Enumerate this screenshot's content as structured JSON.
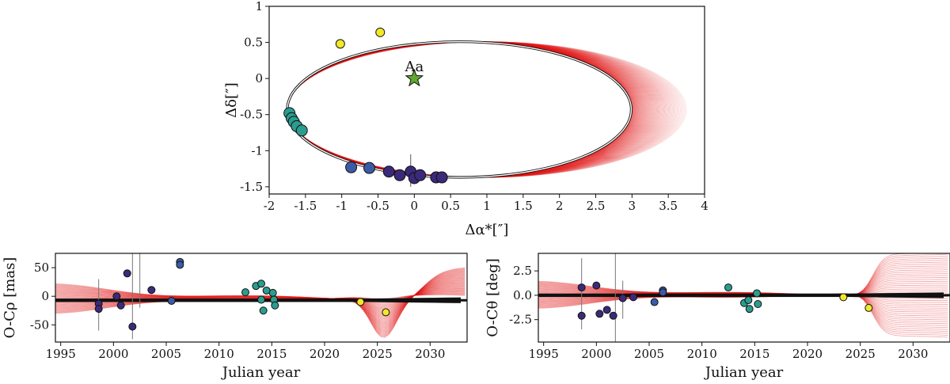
{
  "chart_data": [
    {
      "type": "scatter",
      "panel": "orbit",
      "xlabel": "Δα*[″]",
      "ylabel": "Δδ[″]",
      "xlim": [
        -2,
        4
      ],
      "ylim": [
        -1.6,
        1
      ],
      "xticks": [
        "-2",
        "-1.5",
        "-1",
        "-0.5",
        "0",
        "0.5",
        "1",
        "1.5",
        "2",
        "2.5",
        "3",
        "3.5",
        "4"
      ],
      "yticks": [
        "1",
        "0.5",
        "0",
        "-0.5",
        "-1",
        "-1.5"
      ],
      "xtick_values": [
        -2,
        -1.5,
        -1,
        -0.5,
        0,
        0.5,
        1,
        1.5,
        2,
        2.5,
        3,
        3.5,
        4
      ],
      "ytick_values": [
        1,
        0.5,
        0,
        -0.5,
        -1,
        -1.5
      ],
      "central_star": {
        "label": "Aa",
        "x": 0,
        "y": 0
      },
      "best_orbit": {
        "center": [
          0.62,
          -0.43
        ],
        "semi_x": 2.37,
        "semi_y": 0.94
      },
      "posterior_orbits": {
        "center_range": [
          0.62,
          1.0
        ],
        "semi_x_range": [
          2.37,
          2.75
        ],
        "semi_y": 0.94,
        "count": 70
      },
      "points": [
        {
          "x": -1.72,
          "y": -0.48,
          "c": "#2a9d8f"
        },
        {
          "x": -1.69,
          "y": -0.55,
          "c": "#2a9d8f"
        },
        {
          "x": -1.66,
          "y": -0.6,
          "c": "#2a9d8f"
        },
        {
          "x": -1.62,
          "y": -0.66,
          "c": "#2a9d8f"
        },
        {
          "x": -1.55,
          "y": -0.72,
          "c": "#2a9d8f"
        },
        {
          "x": -0.87,
          "y": -1.23,
          "c": "#3b5ba5"
        },
        {
          "x": -0.62,
          "y": -1.24,
          "c": "#3b5ba5"
        },
        {
          "x": -0.35,
          "y": -1.29,
          "c": "#3b2a7a"
        },
        {
          "x": -0.2,
          "y": -1.34,
          "c": "#3b2a7a"
        },
        {
          "x": -0.05,
          "y": -1.29,
          "c": "#3b2a7a"
        },
        {
          "x": 0.0,
          "y": -1.38,
          "c": "#3b2a7a"
        },
        {
          "x": 0.08,
          "y": -1.34,
          "c": "#3b2a7a"
        },
        {
          "x": 0.3,
          "y": -1.37,
          "c": "#3b2a7a"
        },
        {
          "x": 0.38,
          "y": -1.37,
          "c": "#3b2a7a"
        },
        {
          "x": -1.02,
          "y": 0.48,
          "c": "#f2e82a"
        },
        {
          "x": -0.47,
          "y": 0.64,
          "c": "#f2e82a"
        }
      ]
    },
    {
      "type": "scatter",
      "panel": "residual-rho",
      "xlabel": "Julian year",
      "ylabel": "O-Cρ [mas]",
      "xlim": [
        1994.5,
        2033.5
      ],
      "ylim": [
        -80,
        75
      ],
      "xticks": [
        "1995",
        "2000",
        "2005",
        "2010",
        "2015",
        "2020",
        "2025",
        "2030"
      ],
      "yticks": [
        "50",
        "0",
        "-50"
      ],
      "xtick_values": [
        1995,
        2000,
        2005,
        2010,
        2015,
        2020,
        2025,
        2030
      ],
      "ytick_values": [
        50,
        0,
        -50
      ],
      "points": [
        {
          "x": 1998.6,
          "y": -13,
          "c": "#3b2a7a"
        },
        {
          "x": 1998.6,
          "y": -22,
          "c": "#3b2a7a"
        },
        {
          "x": 2000.3,
          "y": 0,
          "c": "#3b2a7a"
        },
        {
          "x": 2000.7,
          "y": -16,
          "c": "#3b2a7a"
        },
        {
          "x": 2001.3,
          "y": 40,
          "c": "#3b2a7a"
        },
        {
          "x": 2001.8,
          "y": -53,
          "c": "#3b2a7a"
        },
        {
          "x": 2003.6,
          "y": 11,
          "c": "#3b2a7a"
        },
        {
          "x": 2005.5,
          "y": -8,
          "c": "#3b5ba5"
        },
        {
          "x": 2006.3,
          "y": 60,
          "c": "#3b5ba5"
        },
        {
          "x": 2006.3,
          "y": 55,
          "c": "#3b5ba5"
        },
        {
          "x": 2012.5,
          "y": 7,
          "c": "#2a9d8f"
        },
        {
          "x": 2013.5,
          "y": 18,
          "c": "#2a9d8f"
        },
        {
          "x": 2014.0,
          "y": 22,
          "c": "#2a9d8f"
        },
        {
          "x": 2014.0,
          "y": -6,
          "c": "#2a9d8f"
        },
        {
          "x": 2014.2,
          "y": -25,
          "c": "#2a9d8f"
        },
        {
          "x": 2014.5,
          "y": 10,
          "c": "#2a9d8f"
        },
        {
          "x": 2015.1,
          "y": 6,
          "c": "#2a9d8f"
        },
        {
          "x": 2015.2,
          "y": -6,
          "c": "#2a9d8f"
        },
        {
          "x": 2015.3,
          "y": -16,
          "c": "#2a9d8f"
        },
        {
          "x": 2023.4,
          "y": -10,
          "c": "#f2e82a"
        },
        {
          "x": 2025.8,
          "y": -28,
          "c": "#f2e82a"
        }
      ],
      "error_bars": [
        {
          "x": 1998.6,
          "y1": -60,
          "y2": 30
        },
        {
          "x": 2001.8,
          "y1": -75,
          "y2": 75
        },
        {
          "x": 2002.5,
          "y1": -20,
          "y2": 75
        },
        {
          "x": 2006.3,
          "y1": 50,
          "y2": 66
        }
      ]
    },
    {
      "type": "scatter",
      "panel": "residual-theta",
      "xlabel": "Julian year",
      "ylabel": "O-Cθ [deg]",
      "xlim": [
        1994.5,
        2033.5
      ],
      "ylim": [
        -4.8,
        4.3
      ],
      "xticks": [
        "1995",
        "2000",
        "2005",
        "2010",
        "2015",
        "2020",
        "2025",
        "2030"
      ],
      "yticks": [
        "2.5",
        "0.0",
        "-2.5"
      ],
      "xtick_values": [
        1995,
        2000,
        2005,
        2010,
        2015,
        2020,
        2025,
        2030
      ],
      "ytick_values": [
        2.5,
        0,
        -2.5
      ],
      "points": [
        {
          "x": 1998.6,
          "y": 0.8,
          "c": "#3b2a7a"
        },
        {
          "x": 1998.6,
          "y": -2.1,
          "c": "#3b2a7a"
        },
        {
          "x": 2000.0,
          "y": 1.0,
          "c": "#3b2a7a"
        },
        {
          "x": 2000.3,
          "y": -1.9,
          "c": "#3b2a7a"
        },
        {
          "x": 2001.0,
          "y": -1.5,
          "c": "#3b2a7a"
        },
        {
          "x": 2001.6,
          "y": -2.1,
          "c": "#3b2a7a"
        },
        {
          "x": 2002.5,
          "y": -0.3,
          "c": "#3b2a7a"
        },
        {
          "x": 2003.5,
          "y": -0.2,
          "c": "#3b2a7a"
        },
        {
          "x": 2005.5,
          "y": -0.7,
          "c": "#3b5ba5"
        },
        {
          "x": 2006.3,
          "y": 0.5,
          "c": "#3b5ba5"
        },
        {
          "x": 2006.3,
          "y": 0.3,
          "c": "#3b5ba5"
        },
        {
          "x": 2012.5,
          "y": 0.8,
          "c": "#2a9d8f"
        },
        {
          "x": 2014.0,
          "y": -0.8,
          "c": "#2a9d8f"
        },
        {
          "x": 2014.4,
          "y": -0.5,
          "c": "#2a9d8f"
        },
        {
          "x": 2014.5,
          "y": -1.4,
          "c": "#2a9d8f"
        },
        {
          "x": 2015.2,
          "y": 0.2,
          "c": "#2a9d8f"
        },
        {
          "x": 2015.3,
          "y": -0.9,
          "c": "#2a9d8f"
        },
        {
          "x": 2023.4,
          "y": -0.2,
          "c": "#f2e82a"
        },
        {
          "x": 2025.8,
          "y": -1.3,
          "c": "#f2e82a"
        }
      ],
      "error_bars": [
        {
          "x": 1998.6,
          "y1": -3.5,
          "y2": 3.8
        },
        {
          "x": 2001.8,
          "y1": -4.8,
          "y2": 4.3
        },
        {
          "x": 2002.5,
          "y1": -2.4,
          "y2": 1.5
        }
      ]
    }
  ]
}
